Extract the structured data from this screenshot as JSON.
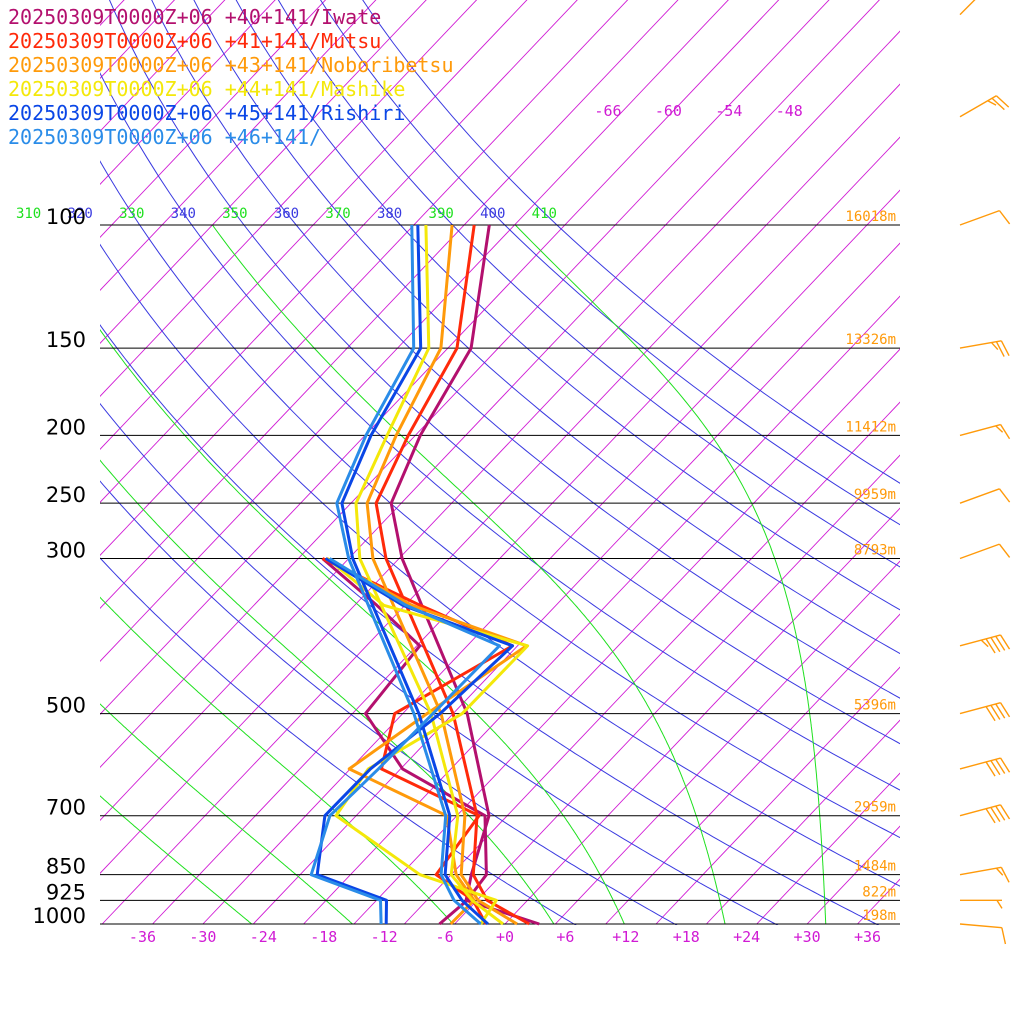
{
  "chart_data": {
    "type": "line",
    "title": "",
    "xlabel": "",
    "ylabel": "",
    "pressure_levels": [
      100,
      150,
      200,
      250,
      300,
      500,
      700,
      850,
      925,
      1000
    ],
    "height_labels": [
      {
        "p": 100,
        "label": "16018m"
      },
      {
        "p": 150,
        "label": "13326m"
      },
      {
        "p": 200,
        "label": "11412m"
      },
      {
        "p": 250,
        "label": "9959m"
      },
      {
        "p": 300,
        "label": "8793m"
      },
      {
        "p": 500,
        "label": "5396m"
      },
      {
        "p": 700,
        "label": "2959m"
      },
      {
        "p": 850,
        "label": "1484m"
      },
      {
        "p": 925,
        "label": "822m"
      },
      {
        "p": 1000,
        "label": "198m"
      }
    ],
    "temp_ticks": [
      "-36",
      "-30",
      "-24",
      "-18",
      "-12",
      "-6",
      "+0",
      "+6",
      "+12",
      "+18",
      "+24",
      "+30",
      "+36"
    ],
    "temp_tick_values": [
      -36,
      -30,
      -24,
      -18,
      -12,
      -6,
      0,
      6,
      12,
      18,
      24,
      30,
      36
    ],
    "upper_temp_labels": [
      "-66",
      "-60",
      "-54",
      "-48"
    ],
    "upper_temp_values": [
      -66,
      -60,
      -54,
      -48
    ],
    "theta_labels": [
      "310",
      "320",
      "330",
      "340",
      "350",
      "360",
      "370",
      "380",
      "390",
      "400",
      "410"
    ],
    "theta_values": [
      310,
      320,
      330,
      340,
      350,
      360,
      370,
      380,
      390,
      400,
      410
    ],
    "sat_theta_values": [
      285,
      295,
      305,
      315,
      325,
      335
    ],
    "xlim": [
      -39,
      40
    ],
    "series": [
      {
        "name": "20250309T0000Z+06 +40+141/Iwate",
        "color": "#b3106e",
        "temperature": [
          [
            1000,
            3.4
          ],
          [
            925,
            -6.1
          ],
          [
            850,
            -8.0
          ],
          [
            700,
            -11.8
          ],
          [
            500,
            -23.6
          ],
          [
            300,
            -44.7
          ],
          [
            250,
            -51.0
          ],
          [
            200,
            -54.5
          ],
          [
            150,
            -57.7
          ],
          [
            100,
            -67.5
          ]
        ],
        "dewpoint": [
          [
            1000,
            -6.5
          ],
          [
            925,
            -6.0
          ],
          [
            850,
            -6.5
          ],
          [
            700,
            -12.2
          ],
          [
            600,
            -24.8
          ],
          [
            500,
            -33.7
          ],
          [
            400,
            -34.7
          ],
          [
            350,
            -42.8
          ],
          [
            300,
            -52.6
          ]
        ]
      },
      {
        "name": "20250309T0000Z+06 +41+141/Mutsu",
        "color": "#ff2a0a",
        "temperature": [
          [
            1000,
            2.4
          ],
          [
            925,
            -4.0
          ],
          [
            850,
            -7.8
          ],
          [
            700,
            -13.0
          ],
          [
            500,
            -25.0
          ],
          [
            300,
            -46.3
          ],
          [
            250,
            -52.5
          ],
          [
            200,
            -55.7
          ],
          [
            150,
            -59.1
          ],
          [
            100,
            -69.0
          ]
        ],
        "dewpoint": [
          [
            1000,
            -1.9
          ],
          [
            925,
            -5.4
          ],
          [
            850,
            -11.5
          ],
          [
            700,
            -12.8
          ],
          [
            600,
            -26.9
          ],
          [
            500,
            -30.8
          ],
          [
            400,
            -25.5
          ],
          [
            350,
            -38.5
          ],
          [
            300,
            -52.6
          ]
        ]
      },
      {
        "name": "20250309T0000Z+06 +43+141/Noboribetsu",
        "color": "#ff9a0a",
        "temperature": [
          [
            1000,
            1.2
          ],
          [
            925,
            -4.9
          ],
          [
            850,
            -9.0
          ],
          [
            700,
            -14.2
          ],
          [
            500,
            -26.2
          ],
          [
            300,
            -47.6
          ],
          [
            250,
            -53.4
          ],
          [
            200,
            -56.9
          ],
          [
            150,
            -60.7
          ],
          [
            100,
            -71.2
          ]
        ],
        "dewpoint": [
          [
            1000,
            -5.4
          ],
          [
            925,
            -5.3
          ],
          [
            850,
            -9.5
          ],
          [
            700,
            -16.0
          ],
          [
            600,
            -30.1
          ],
          [
            500,
            -27.6
          ],
          [
            400,
            -24.1
          ],
          [
            350,
            -39.3
          ],
          [
            300,
            -52.2
          ]
        ]
      },
      {
        "name": "20250309T0000Z+06 +44+141/Mashike",
        "color": "#f4e80a",
        "temperature": [
          [
            1000,
            -0.2
          ],
          [
            925,
            -5.5
          ],
          [
            850,
            -10.0
          ],
          [
            700,
            -14.9
          ],
          [
            500,
            -27.2
          ],
          [
            300,
            -48.9
          ],
          [
            250,
            -54.5
          ],
          [
            200,
            -57.8
          ],
          [
            150,
            -61.9
          ],
          [
            100,
            -73.8
          ]
        ],
        "dewpoint": [
          [
            1000,
            -2.4
          ],
          [
            925,
            -3.1
          ],
          [
            850,
            -13.1
          ],
          [
            700,
            -27.0
          ],
          [
            600,
            -28.2
          ],
          [
            500,
            -24.1
          ],
          [
            400,
            -24.0
          ],
          [
            350,
            -42.1
          ],
          [
            300,
            -52.1
          ]
        ]
      },
      {
        "name": "20250309T0000Z+06 +45+141/Rishiri",
        "color": "#0a46e6",
        "temperature": [
          [
            1000,
            -1.7
          ],
          [
            925,
            -6.5
          ],
          [
            850,
            -10.6
          ],
          [
            700,
            -15.7
          ],
          [
            500,
            -28.4
          ],
          [
            300,
            -49.6
          ],
          [
            250,
            -55.9
          ],
          [
            200,
            -59.4
          ],
          [
            150,
            -62.7
          ],
          [
            100,
            -74.6
          ]
        ],
        "dewpoint": [
          [
            1000,
            -11.8
          ],
          [
            925,
            -14.0
          ],
          [
            850,
            -23.3
          ],
          [
            700,
            -28.1
          ],
          [
            600,
            -28.0
          ],
          [
            500,
            -26.3
          ],
          [
            400,
            -25.5
          ],
          [
            350,
            -40.2
          ],
          [
            300,
            -52.3
          ]
        ]
      },
      {
        "name": "20250309T0000Z+06 +46+141/",
        "color": "#2a8ce8",
        "temperature": [
          [
            1000,
            -2.4
          ],
          [
            925,
            -7.3
          ],
          [
            850,
            -11.0
          ],
          [
            700,
            -16.1
          ],
          [
            500,
            -28.9
          ],
          [
            300,
            -50.0
          ],
          [
            250,
            -56.4
          ],
          [
            200,
            -59.9
          ],
          [
            150,
            -63.4
          ],
          [
            100,
            -75.2
          ]
        ],
        "dewpoint": [
          [
            1000,
            -12.3
          ],
          [
            925,
            -14.6
          ],
          [
            850,
            -23.9
          ],
          [
            700,
            -27.6
          ],
          [
            600,
            -27.2
          ],
          [
            500,
            -27.0
          ],
          [
            400,
            -26.8
          ],
          [
            350,
            -39.9
          ],
          [
            300,
            -51.9
          ]
        ]
      }
    ],
    "wind_barb_color": "#ff9a0a",
    "wind_barbs": [
      {
        "p": 1000,
        "dir": 275,
        "kt": 10
      },
      {
        "p": 925,
        "dir": 270,
        "kt": 5
      },
      {
        "p": 850,
        "dir": 260,
        "kt": 15
      },
      {
        "p": 700,
        "dir": 255,
        "kt": 40
      },
      {
        "p": 600,
        "dir": 255,
        "kt": 40
      },
      {
        "p": 500,
        "dir": 255,
        "kt": 40
      },
      {
        "p": 400,
        "dir": 255,
        "kt": 45
      },
      {
        "p": 300,
        "dir": 250,
        "kt": 10
      },
      {
        "p": 250,
        "dir": 250,
        "kt": 10
      },
      {
        "p": 200,
        "dir": 255,
        "kt": 15
      },
      {
        "p": 150,
        "dir": 260,
        "kt": 25
      },
      {
        "p": 100,
        "dir": 250,
        "kt": 10
      },
      {
        "p": 70,
        "dir": 240,
        "kt": 25
      },
      {
        "p": 50,
        "dir": 225,
        "kt": 20
      }
    ],
    "colors": {
      "isotherm": "#d01ad4",
      "dry_adiabat": "#3a3ae0",
      "moist_adiabat": "#1ee01e",
      "isobar": "#000000",
      "height_label": "#ff9a0a",
      "temp_tick": "#d01ad4"
    }
  }
}
